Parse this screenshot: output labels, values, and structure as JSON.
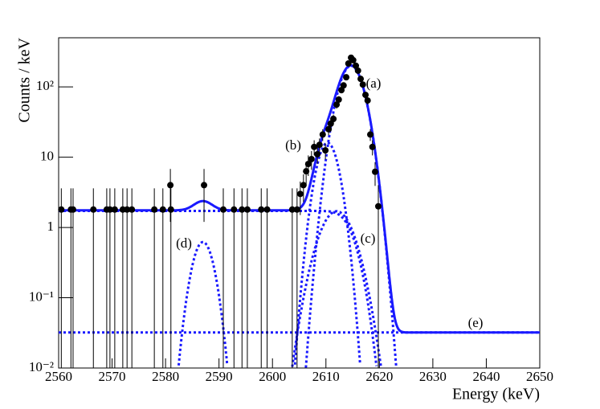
{
  "chart_data": {
    "type": "scatter",
    "x_label": "Energy (keV)",
    "y_label": "Counts / keV",
    "log_y": true,
    "xlim": [
      2560,
      2650
    ],
    "ylim": [
      0.01,
      500
    ],
    "xticks": [
      2560,
      2570,
      2580,
      2590,
      2600,
      2610,
      2620,
      2630,
      2640,
      2650
    ],
    "yticks": [
      {
        "value": 0.01,
        "label": "10⁻²"
      },
      {
        "value": 0.1,
        "label": "10⁻¹"
      },
      1,
      10,
      {
        "value": 100,
        "label": "10²"
      }
    ],
    "color": "#000000",
    "x": [
      2560.5,
      2562.3,
      2562.7,
      2566.5,
      2569.0,
      2569.6,
      2570.5,
      2572.0,
      2572.8,
      2573.7,
      2577.9,
      2579.5,
      2580.9,
      2581.0,
      2587.2,
      2590.8,
      2592.8,
      2594.3,
      2595.3,
      2597.9,
      2599.0,
      2603.7,
      2604.6,
      2605.2,
      2605.8,
      2606.3,
      2606.7,
      2607.3,
      2607.8,
      2608.4,
      2608.8,
      2609.4,
      2609.9,
      2610.5,
      2610.9,
      2611.4,
      2612.0,
      2612.4,
      2612.9,
      2613.3,
      2613.8,
      2614.2,
      2614.7,
      2615.1,
      2615.6,
      2616.0,
      2616.5,
      2616.9,
      2617.4,
      2617.8,
      2618.3,
      2618.7,
      2619.2,
      2619.8
    ],
    "values": [
      1.8,
      1.8,
      1.8,
      1.8,
      1.8,
      1.8,
      1.8,
      1.8,
      1.8,
      1.8,
      1.8,
      1.8,
      4,
      1.8,
      4,
      1.8,
      1.8,
      1.8,
      1.8,
      1.8,
      1.8,
      1.8,
      1.8,
      3,
      4,
      6.3,
      8,
      9.4,
      14,
      11,
      15,
      21,
      12.5,
      25,
      30,
      35,
      56,
      66,
      90,
      105,
      137,
      215,
      260,
      240,
      200,
      170,
      130,
      108,
      77,
      64,
      21,
      14,
      6.2,
      2
    ],
    "errors": [
      1.8,
      1.8,
      1.8,
      1.8,
      1.8,
      1.8,
      1.8,
      1.8,
      1.8,
      1.8,
      1.8,
      1.8,
      2.8,
      1.8,
      2.8,
      1.8,
      1.8,
      1.8,
      1.8,
      1.8,
      1.8,
      1.8,
      1.8,
      1.5,
      1.7,
      2.3,
      2.6,
      2.8,
      3.4,
      3,
      3.5,
      4,
      3.2,
      4.5,
      5,
      5.3,
      7,
      7.5,
      9,
      10,
      11,
      14,
      16,
      15,
      14,
      13,
      11,
      10,
      8.5,
      8,
      4,
      3.4,
      2.3,
      2
    ],
    "fit_color": "#1a1aff",
    "components": [
      {
        "label": "(a)",
        "shape": "gaussian",
        "amplitude": 200,
        "mean": 2614.7,
        "sigma": 1.9
      },
      {
        "label": "(b)",
        "shape": "gaussian",
        "amplitude": 16,
        "mean": 2610.3,
        "sigma": 1.6
      },
      {
        "label": "(c)",
        "shape": "gaussian",
        "amplitude": 1.7,
        "mean": 2612,
        "sigma": 2.6
      },
      {
        "label": "(d)",
        "shape": "gaussian",
        "amplitude": 0.62,
        "mean": 2587,
        "sigma": 1.6
      },
      {
        "shape": "step",
        "amplitude": 1.72,
        "mean": 2614.7,
        "sigma": 1.9
      },
      {
        "label": "(e)",
        "shape": "constant",
        "amplitude": 0.032
      }
    ]
  }
}
